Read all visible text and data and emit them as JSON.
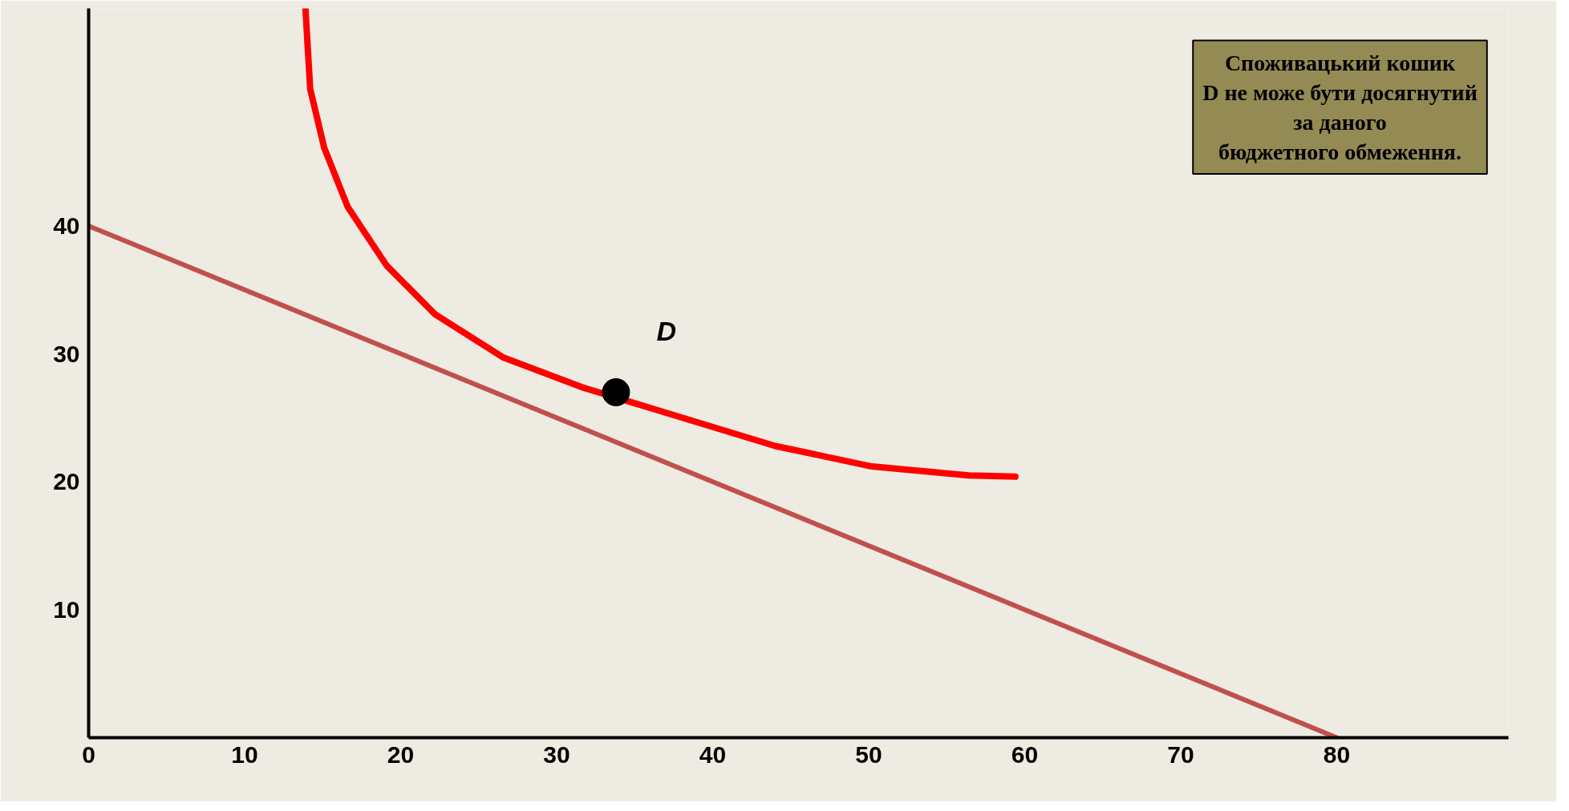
{
  "chart_data": {
    "type": "line",
    "xlim": [
      0,
      91
    ],
    "ylim": [
      0,
      57
    ],
    "xticks": [
      0,
      10,
      20,
      30,
      40,
      50,
      60,
      70,
      80
    ],
    "yticks": [
      10,
      20,
      30,
      40
    ],
    "grid": false,
    "marker": "none",
    "line_style": "solid",
    "series": [
      {
        "color": "#c0504d",
        "x": [
          0,
          80
        ],
        "values": [
          40,
          0
        ]
      },
      {
        "color": "#ff0000",
        "x": [
          13.9,
          14.2,
          15.1,
          16.6,
          19.1,
          22.2,
          26.6,
          31.6,
          37.8,
          44.0,
          50.2,
          56.4,
          59.4
        ],
        "values": [
          56.9,
          50.7,
          46.1,
          41.5,
          36.9,
          33.1,
          29.7,
          27.4,
          25.1,
          22.8,
          21.2,
          20.5,
          20.4
        ]
      },
      {
        "type": "scatter",
        "name": "D",
        "marker": "circle",
        "color": "#000000",
        "x": [
          33.8
        ],
        "values": [
          27.0
        ]
      }
    ],
    "annotations": [
      "Споживацький кошик\nD не може бути досягнутий\nза даного\nбюджетного обмеження."
    ]
  }
}
